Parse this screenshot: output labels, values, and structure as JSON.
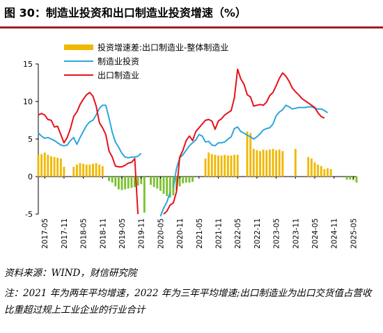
{
  "header": {
    "title": "图 30：制造业投资和出口制造业投资增速（%）"
  },
  "footer": {
    "source": "资料来源：WIND，财信研究院",
    "note": "注：2021 年为两年平均增速，2022 年为三年平均增速;出口制造业为出口交货值占营收比重超过规上工业企业的行业合计"
  },
  "colors": {
    "bar": "#f0b800",
    "bar_neg": "#7cc030",
    "invest": "#2ba6dc",
    "export": "#e8101a",
    "title_rule": "#a01e28"
  },
  "chart_data": {
    "type": "bar+line",
    "ylim": [
      -5,
      15
    ],
    "yticks": [
      -5,
      0,
      5,
      10,
      15
    ],
    "x_ticks": [
      "2017-05",
      "2017-11",
      "2018-05",
      "2018-11",
      "2019-05",
      "2019-11",
      "2020-05",
      "2020-11",
      "2021-05",
      "2021-11",
      "2022-05",
      "2022-11",
      "2023-05",
      "2023-11",
      "2024-05",
      "2024-11",
      "2025-05"
    ],
    "legend_position": "top",
    "series": [
      {
        "name": "投资增速差:出口制造业-整体制造业",
        "type": "bar",
        "start": "2017-03",
        "values": [
          2.9,
          3.0,
          3.2,
          2.9,
          2.7,
          2.6,
          2.5,
          2.4,
          1.3,
          null,
          null,
          1.3,
          1.6,
          1.8,
          1.7,
          1.6,
          1.6,
          1.7,
          1.8,
          1.6,
          1.4,
          null,
          -0.6,
          -0.8,
          -1.3,
          -1.7,
          -1.8,
          -1.7,
          -1.6,
          -1.5,
          -1.4,
          -1.2,
          -1.0,
          -4.8,
          null,
          -1.1,
          -1.4,
          -1.6,
          -1.9,
          -2.3,
          -2.6,
          -2.8,
          -2.5,
          -1.8,
          -1.3,
          -0.9,
          -0.8,
          -0.8,
          -0.7,
          null,
          null,
          null,
          2.4,
          3.2,
          3.0,
          2.9,
          2.8,
          2.8,
          2.9,
          2.8,
          2.8,
          2.9,
          2.9,
          null,
          null,
          6.0,
          5.8,
          3.7,
          3.5,
          3.4,
          3.6,
          3.5,
          3.6,
          3.7,
          3.5,
          3.6,
          3.4,
          null,
          null,
          null,
          3.7,
          null,
          null,
          null,
          2.6,
          2.4,
          1.9,
          1.6,
          1.4,
          1.0,
          1.1,
          1.0,
          null,
          null,
          null,
          null,
          -0.4,
          -0.4,
          -0.5,
          -0.8
        ]
      },
      {
        "name": "制造业投资",
        "type": "line",
        "segments": [
          {
            "start": "2017-03",
            "values": [
              5.8,
              5.4,
              5.1,
              5.2,
              5.0,
              4.8,
              4.5,
              4.2,
              4.1,
              4.2,
              4.8,
              5.2,
              4.3,
              5.2,
              6.0,
              6.8,
              7.3,
              7.5,
              8.2,
              9.1,
              9.5,
              9.5,
              7.8,
              5.9,
              4.6,
              3.9,
              3.1,
              2.6,
              2.5,
              2.6,
              2.6,
              2.7,
              3.1
            ]
          },
          {
            "start": "2020-05",
            "values": [
              -5.3,
              -4.2,
              -3.4,
              -2.1
            ]
          },
          {
            "start": "2020-09",
            "values": [
              -1.5,
              1.1,
              2.5,
              2.9,
              3.5,
              4.1,
              4.5,
              4.9,
              5.6,
              5.4,
              4.6,
              4.7,
              4.2,
              4.1,
              4.5,
              4.5,
              4.6,
              5.0,
              5.3,
              6.4,
              6.6,
              6.0,
              5.8,
              5.5,
              5.3,
              5.0,
              5.3,
              5.7,
              6.2,
              6.4,
              6.5,
              7.0,
              8.1,
              8.6,
              8.9,
              9.5,
              9.3,
              9.0,
              9.1,
              9.2,
              9.2,
              9.2,
              9.3,
              9.3,
              9.1,
              9.0,
              9.0,
              8.8,
              8.5
            ]
          }
        ]
      },
      {
        "name": "出口制造业",
        "type": "line",
        "segments": [
          {
            "start": "2017-03",
            "values": [
              8.2,
              8.4,
              8.2,
              7.6,
              7.5,
              6.6,
              6.7,
              5.6,
              4.5,
              5.2,
              6.4,
              8.0,
              8.6,
              9.6,
              10.3,
              10.9,
              11.2,
              10.7,
              9.4,
              7.2,
              6.5,
              5.6,
              3.4,
              2.6,
              1.4,
              1.3,
              1.3,
              1.5,
              1.8,
              1.9,
              2.4,
              -5.0
            ]
          },
          {
            "start": "2020-06",
            "values": [
              -5.0,
              -4.6,
              -3.8,
              -3.5,
              -2.0,
              2.6,
              3.5,
              4.8,
              5.4,
              4.8,
              6.0,
              6.5,
              7.0,
              7.5,
              7.6,
              7.4,
              6.3,
              7.4,
              7.7,
              8.2,
              8.5,
              8.8,
              10.5,
              14.3,
              13.0,
              12.3,
              10.9,
              10.6,
              9.4,
              9.5,
              9.6,
              9.5,
              9.9,
              10.8,
              11.2,
              12.1,
              13.1,
              13.8,
              13.4,
              12.7,
              11.8,
              11.3,
              10.9,
              10.4,
              10.1,
              9.8,
              9.5,
              9.2,
              8.5,
              8.0,
              7.8
            ]
          }
        ]
      }
    ]
  }
}
